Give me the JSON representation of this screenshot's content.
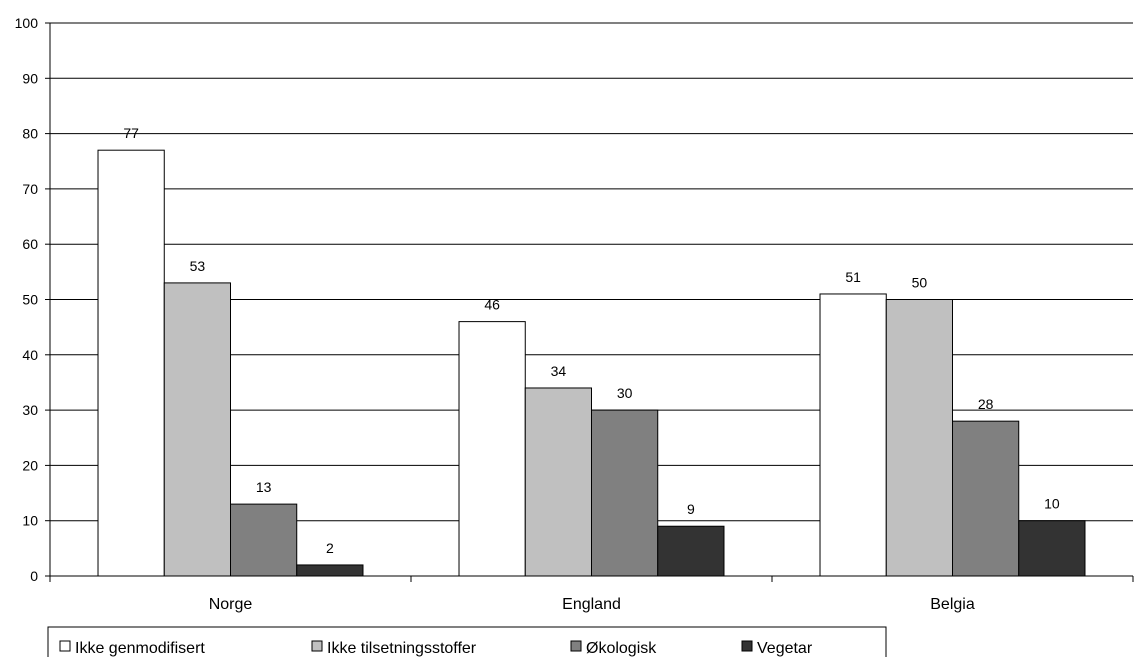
{
  "chart_data": {
    "type": "bar",
    "categories": [
      "Norge",
      "England",
      "Belgia"
    ],
    "series": [
      {
        "name": "Ikke genmodifisert",
        "color": "#ffffff",
        "values": [
          77,
          46,
          51
        ]
      },
      {
        "name": "Ikke tilsetningsstoffer",
        "color": "#c0c0c0",
        "values": [
          53,
          34,
          50
        ]
      },
      {
        "name": "Økologisk",
        "color": "#808080",
        "values": [
          13,
          30,
          28
        ]
      },
      {
        "name": "Vegetar",
        "color": "#333333",
        "values": [
          2,
          9,
          10
        ]
      }
    ],
    "yticks": [
      "0",
      "10",
      "20",
      "30",
      "40",
      "50",
      "60",
      "70",
      "80",
      "90",
      "100"
    ],
    "ylim": [
      0,
      100
    ],
    "grid": true,
    "data_labels": true,
    "legend_position": "bottom-left"
  }
}
